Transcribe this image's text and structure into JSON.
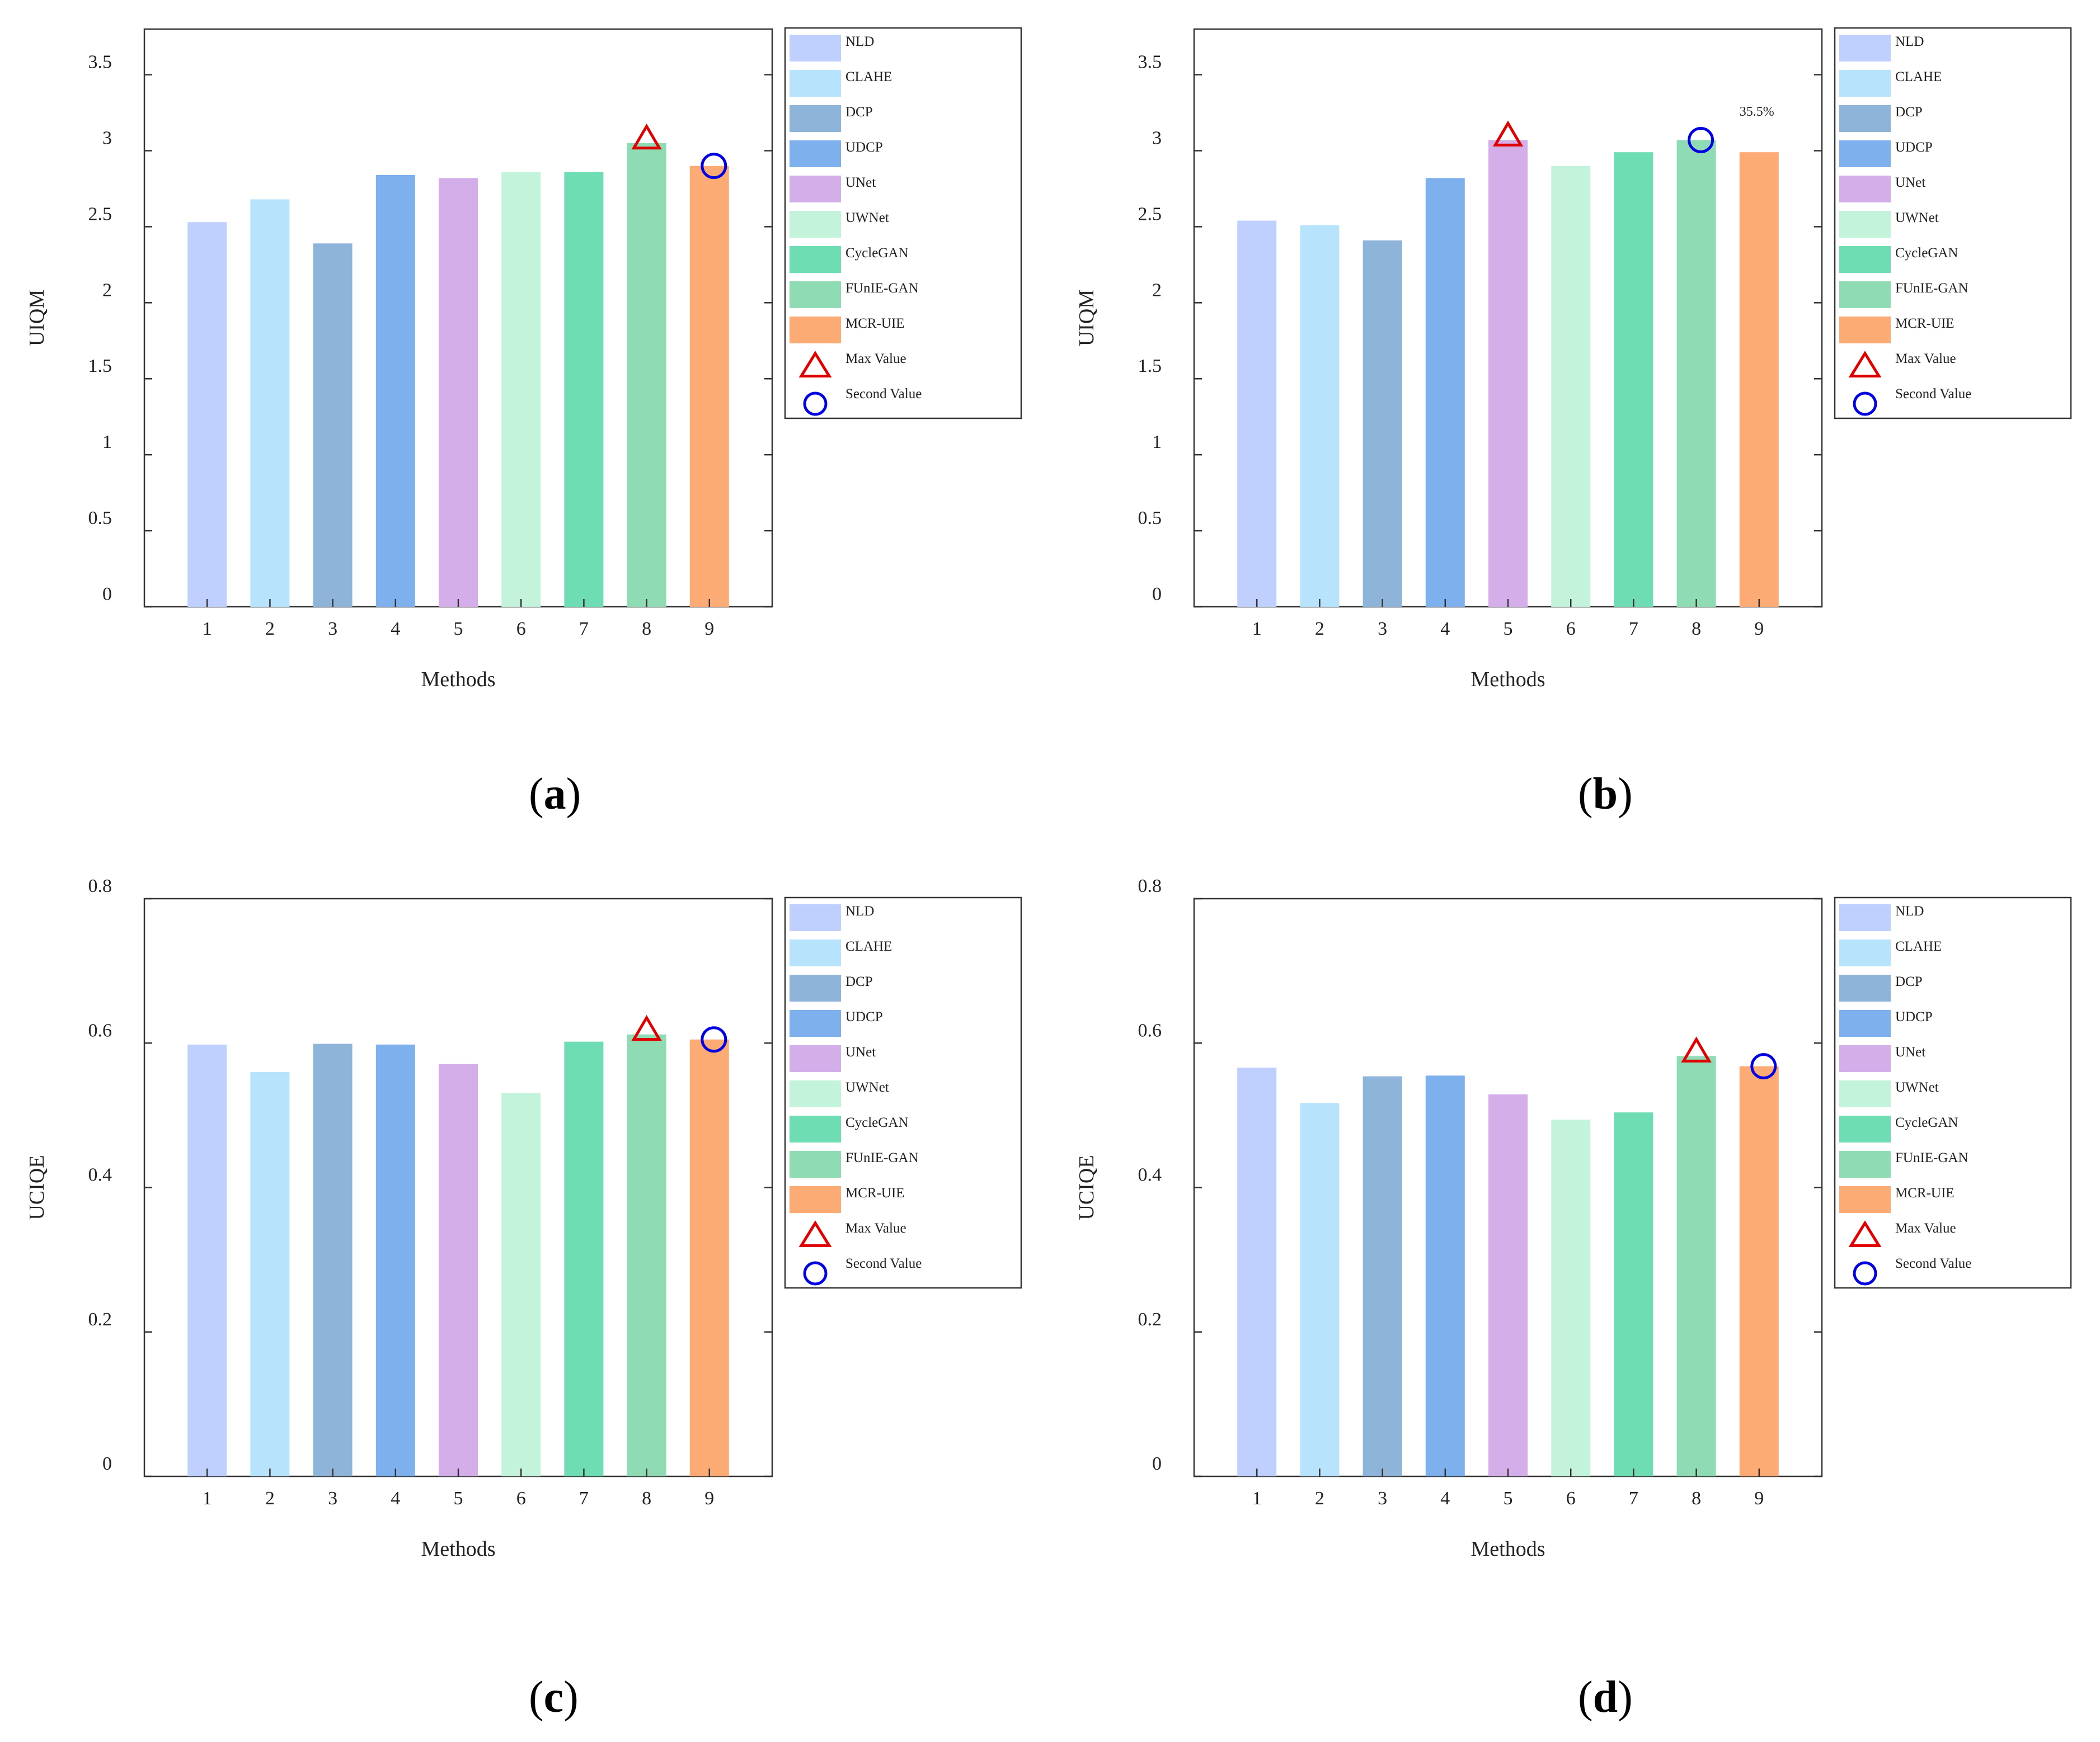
{
  "legend": {
    "entries": [
      "NLD",
      "CLAHE",
      "DCP",
      "UDCP",
      "UNet",
      "UWNet",
      "CycleGAN",
      "FUnIE-GAN",
      "MCR-UIE"
    ],
    "max_label": "Max Value",
    "second_label": "Second Value"
  },
  "colors": [
    "#bfd0ff",
    "#b7e4fc",
    "#8fb4d9",
    "#7fb0ee",
    "#d3aee9",
    "#c3f3db",
    "#6fddb4",
    "#8fdbb3",
    "#fdab75"
  ],
  "marker_colors": {
    "max": "#e00000",
    "second": "#0000e0"
  },
  "chart_data": [
    {
      "type": "bar",
      "panel_label": "a",
      "categories": [
        "1",
        "2",
        "3",
        "4",
        "5",
        "6",
        "7",
        "8",
        "9"
      ],
      "values": [
        2.53,
        2.68,
        2.39,
        2.84,
        2.82,
        2.86,
        2.86,
        3.05,
        2.9
      ],
      "xlabel": "Methods",
      "ylabel": "UIQM",
      "ylim": [
        0,
        3.8
      ],
      "yticks": [
        0,
        0.5,
        1,
        1.5,
        2,
        2.5,
        3,
        3.5
      ],
      "ytick_labels": [
        "0",
        "0.5",
        "1",
        "1.5",
        "2",
        "2.5",
        "3",
        "3.5"
      ],
      "max_index": 7,
      "second_index": 8,
      "annotation": ""
    },
    {
      "type": "bar",
      "panel_label": "b",
      "categories": [
        "1",
        "2",
        "3",
        "4",
        "5",
        "6",
        "7",
        "8",
        "9"
      ],
      "values": [
        2.54,
        2.51,
        2.41,
        2.82,
        3.07,
        2.9,
        2.99,
        3.07,
        2.99
      ],
      "xlabel": "Methods",
      "ylabel": "UIQM",
      "ylim": [
        0,
        3.8
      ],
      "yticks": [
        0,
        0.5,
        1,
        1.5,
        2,
        2.5,
        3,
        3.5
      ],
      "ytick_labels": [
        "0",
        "0.5",
        "1",
        "1.5",
        "2",
        "2.5",
        "3",
        "3.5"
      ],
      "max_index": 4,
      "second_index": 7,
      "annotation": "35.5%"
    },
    {
      "type": "bar",
      "panel_label": "c",
      "categories": [
        "1",
        "2",
        "3",
        "4",
        "5",
        "6",
        "7",
        "8",
        "9"
      ],
      "values": [
        0.598,
        0.56,
        0.599,
        0.598,
        0.571,
        0.531,
        0.602,
        0.612,
        0.605
      ],
      "xlabel": "Methods",
      "ylabel": "UCIQE",
      "ylim": [
        0,
        0.8
      ],
      "yticks": [
        0,
        0.2,
        0.4,
        0.6,
        0.8
      ],
      "ytick_labels": [
        "0",
        "0.2",
        "0.4",
        "0.6",
        "0.8"
      ],
      "max_index": 7,
      "second_index": 8,
      "annotation": ""
    },
    {
      "type": "bar",
      "panel_label": "d",
      "categories": [
        "1",
        "2",
        "3",
        "4",
        "5",
        "6",
        "7",
        "8",
        "9"
      ],
      "values": [
        0.566,
        0.517,
        0.554,
        0.555,
        0.529,
        0.494,
        0.504,
        0.582,
        0.568
      ],
      "xlabel": "Methods",
      "ylabel": "UCIQE",
      "ylim": [
        0,
        0.8
      ],
      "yticks": [
        0,
        0.2,
        0.4,
        0.6,
        0.8
      ],
      "ytick_labels": [
        "0",
        "0.2",
        "0.4",
        "0.6",
        "0.8"
      ],
      "max_index": 7,
      "second_index": 8,
      "annotation": ""
    }
  ]
}
